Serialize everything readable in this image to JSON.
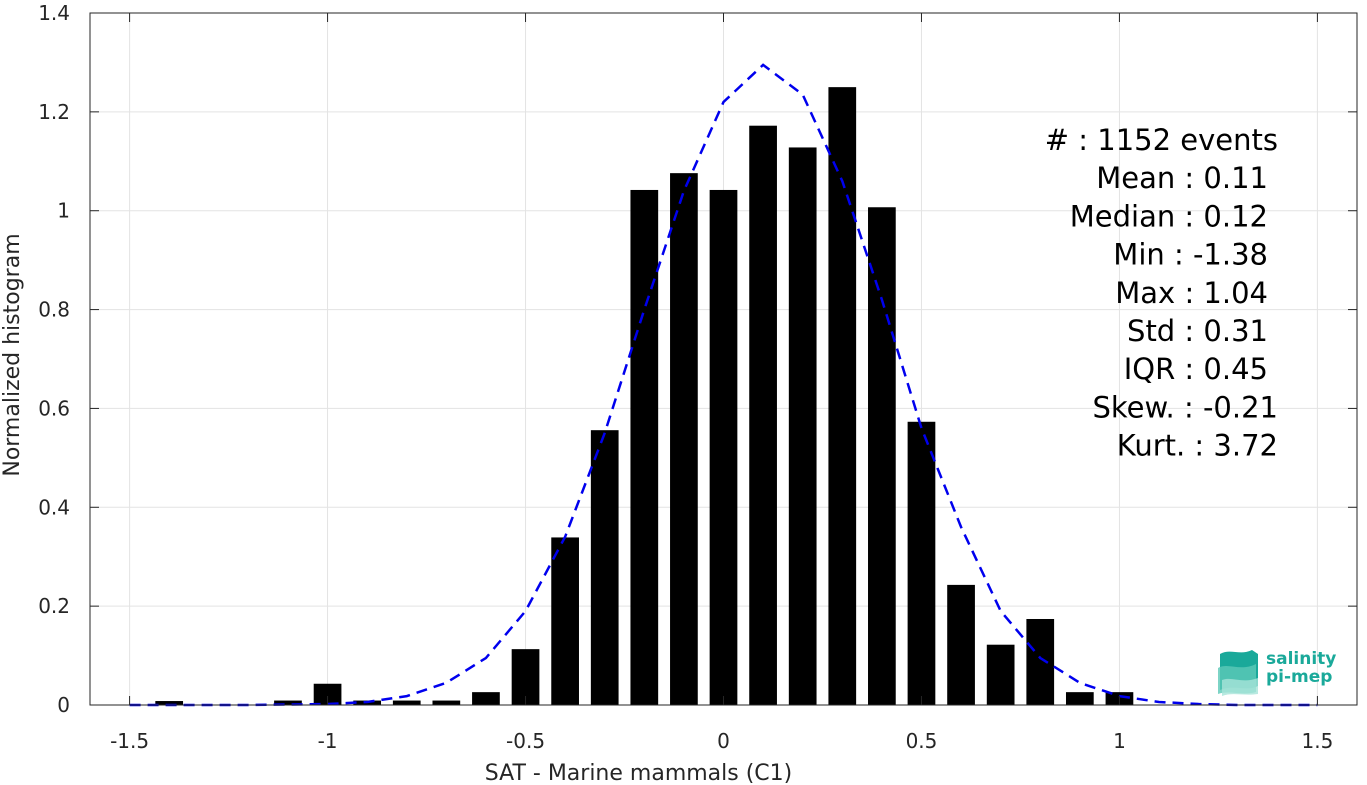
{
  "chart_data": {
    "type": "bar",
    "xlabel": "SAT - Marine mammals (C1)",
    "ylabel": "Normalized histogram",
    "xlim": [
      -1.6,
      1.6
    ],
    "ylim": [
      0,
      1.4
    ],
    "xticks": [
      -1.5,
      -1,
      -0.5,
      0,
      0.5,
      1,
      1.5
    ],
    "xtick_labels": [
      "-1.5",
      "-1",
      "-0.5",
      "0",
      "0.5",
      "1",
      "1.5"
    ],
    "yticks": [
      0,
      0.2,
      0.4,
      0.6,
      0.8,
      1,
      1.2,
      1.4
    ],
    "ytick_labels": [
      "0",
      "0.2",
      "0.4",
      "0.6",
      "0.8",
      "1",
      "1.2",
      "1.4"
    ],
    "grid": true,
    "bar_color": "#000000",
    "fit_color": "#0000ee",
    "bars": {
      "x": [
        -1.4,
        -1.3,
        -1.2,
        -1.1,
        -1.0,
        -0.9,
        -0.8,
        -0.7,
        -0.6,
        -0.5,
        -0.4,
        -0.3,
        -0.2,
        -0.1,
        0.0,
        0.1,
        0.2,
        0.3,
        0.4,
        0.5,
        0.6,
        0.7,
        0.8,
        0.9,
        1.0
      ],
      "values": [
        0.008,
        0,
        0,
        0.009,
        0.043,
        0.009,
        0.009,
        0.009,
        0.026,
        0.113,
        0.339,
        0.556,
        1.042,
        1.076,
        1.042,
        1.172,
        1.128,
        1.25,
        1.007,
        0.573,
        0.243,
        0.122,
        0.174,
        0.026,
        0.026
      ]
    },
    "fit_curve": {
      "style": "dashed",
      "x": [
        -1.5,
        -1.4,
        -1.3,
        -1.2,
        -1.1,
        -1.0,
        -0.9,
        -0.8,
        -0.7,
        -0.6,
        -0.5,
        -0.4,
        -0.3,
        -0.2,
        -0.1,
        0.0,
        0.1,
        0.2,
        0.3,
        0.4,
        0.5,
        0.6,
        0.7,
        0.8,
        0.9,
        1.0,
        1.1,
        1.2,
        1.3,
        1.4,
        1.5
      ],
      "y": [
        0.0,
        0.0,
        0.0,
        0.0,
        0.001,
        0.002,
        0.006,
        0.018,
        0.045,
        0.095,
        0.19,
        0.34,
        0.55,
        0.8,
        1.04,
        1.22,
        1.295,
        1.235,
        1.06,
        0.82,
        0.56,
        0.36,
        0.19,
        0.095,
        0.045,
        0.018,
        0.006,
        0.002,
        0.0,
        0.0,
        0.0
      ]
    },
    "stats": [
      {
        "label": "#  : 1152 events"
      },
      {
        "label": "Mean : 0.11"
      },
      {
        "label": "Median : 0.12"
      },
      {
        "label": "Min : -1.38"
      },
      {
        "label": "Max : 1.04"
      },
      {
        "label": "Std : 0.31"
      },
      {
        "label": "IQR : 0.45"
      },
      {
        "label": "Skew. : -0.21"
      },
      {
        "label": "Kurt. : 3.72"
      }
    ]
  },
  "logo": {
    "line1": "salinity",
    "line2": "pi-mep"
  }
}
